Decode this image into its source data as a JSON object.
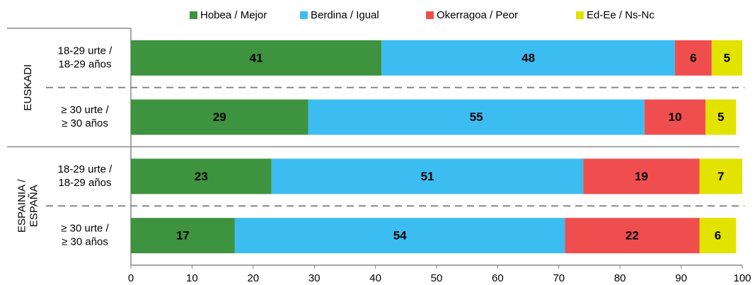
{
  "chart_data": {
    "type": "stacked_barh",
    "groups": [
      {
        "label": [
          "EUSKADI"
        ],
        "categories": [
          [
            "18-29 urte /",
            "18-29 años"
          ],
          [
            "≥ 30 urte /",
            "≥ 30 años"
          ]
        ]
      },
      {
        "label": [
          "ESPAINIA /",
          "ESPAÑA"
        ],
        "categories": [
          [
            "18-29 urte /",
            "18-29 años"
          ],
          [
            "≥ 30 urte /",
            "≥ 30 años"
          ]
        ]
      }
    ],
    "series": [
      {
        "name": "Hobea / Mejor",
        "color": "#3e933e",
        "values": [
          41,
          29,
          23,
          17
        ]
      },
      {
        "name": "Berdina / Igual",
        "color": "#3cbdf2",
        "values": [
          48,
          55,
          51,
          54
        ]
      },
      {
        "name": "Okerragoa / Peor",
        "color": "#f04e4e",
        "values": [
          6,
          10,
          19,
          22
        ]
      },
      {
        "name": "Ed-Ee / Ns-Nc",
        "color": "#e3e300",
        "values": [
          5,
          5,
          7,
          6
        ]
      }
    ],
    "xlim": [
      0,
      100
    ],
    "xticks": [
      0,
      10,
      20,
      30,
      40,
      50,
      60,
      70,
      80,
      90,
      100
    ],
    "legend": "top"
  }
}
